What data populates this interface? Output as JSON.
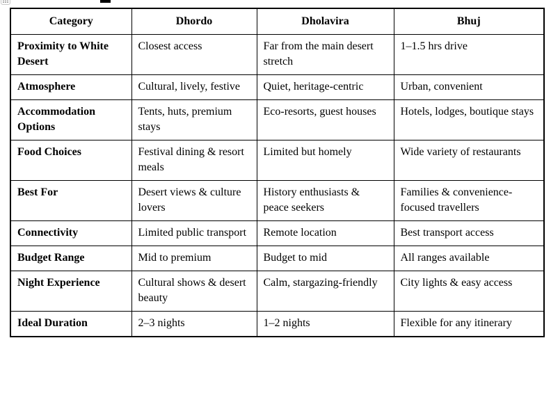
{
  "page": {
    "background_color": "#ffffff",
    "text_color": "#000000",
    "border_color": "#000000"
  },
  "artifacts": {
    "drag_handle_icon": "table-drag-handle",
    "clipped_title_fragment": ""
  },
  "table": {
    "columns": [
      "Category",
      "Dhordo",
      "Dholavira",
      "Bhuj"
    ],
    "rows": [
      {
        "cells": [
          "Proximity to White Desert",
          "Closest access",
          "Far from the main desert stretch",
          "1–1.5 hrs drive"
        ]
      },
      {
        "cells": [
          "Atmosphere",
          "Cultural, lively, festive",
          "Quiet, heritage-centric",
          "Urban, convenient"
        ]
      },
      {
        "cells": [
          "Accommodation Options",
          "Tents, huts, premium stays",
          "Eco-resorts, guest houses",
          "Hotels, lodges, boutique stays"
        ]
      },
      {
        "cells": [
          "Food Choices",
          "Festival dining & resort meals",
          "Limited but homely",
          "Wide variety of restaurants"
        ]
      },
      {
        "cells": [
          "Best For",
          "Desert views & culture lovers",
          "History enthusiasts & peace seekers",
          "Families & convenience-focused travellers"
        ]
      },
      {
        "cells": [
          "Connectivity",
          "Limited public transport",
          "Remote location",
          "Best transport access"
        ]
      },
      {
        "cells": [
          "Budget Range",
          "Mid to premium",
          "Budget to mid",
          "All ranges available"
        ]
      },
      {
        "cells": [
          "Night Experience",
          "Cultural shows & desert beauty",
          "Calm, stargazing-friendly",
          "City lights & easy access"
        ]
      },
      {
        "cells": [
          "Ideal Duration",
          "2–3 nights",
          "1–2 nights",
          "Flexible for any itinerary"
        ]
      }
    ]
  }
}
